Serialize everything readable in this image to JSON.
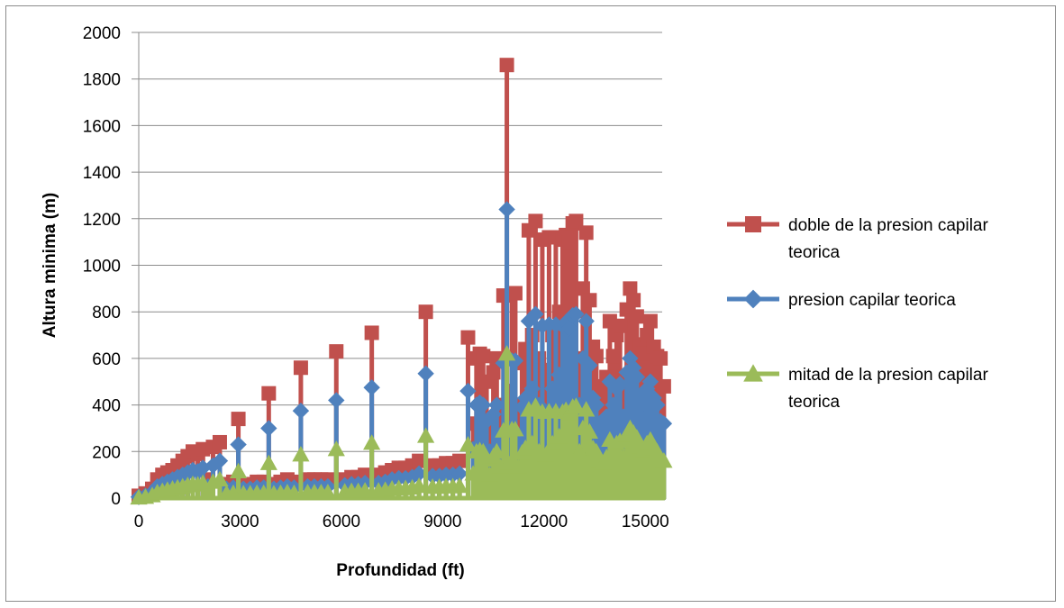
{
  "chart_data": {
    "type": "line",
    "title": "",
    "xlabel": "Profundidad (ft)",
    "ylabel": "Altura minima (m)",
    "xlim": [
      0,
      15500
    ],
    "ylim": [
      0,
      2000
    ],
    "xticks": [
      0,
      3000,
      6000,
      9000,
      12000,
      15000
    ],
    "yticks": [
      0,
      200,
      400,
      600,
      800,
      1000,
      1200,
      1400,
      1600,
      1800,
      2000
    ],
    "grid": "horizontal",
    "legend_position": "right",
    "series": [
      {
        "name": "doble de la presion capilar teorica",
        "color": "#c0504d",
        "marker": "square",
        "x": [
          0,
          200,
          400,
          550,
          700,
          850,
          1000,
          1150,
          1300,
          1450,
          1600,
          1750,
          1900,
          2050,
          2200,
          2400,
          2600,
          2800,
          2950,
          3100,
          3300,
          3500,
          3700,
          3850,
          4000,
          4200,
          4400,
          4600,
          4800,
          5000,
          5200,
          5400,
          5600,
          5850,
          6100,
          6300,
          6500,
          6700,
          6900,
          7100,
          7300,
          7500,
          7700,
          7900,
          8100,
          8300,
          8500,
          8700,
          8900,
          9100,
          9300,
          9500,
          9750,
          9900,
          10000,
          10100,
          10200,
          10300,
          10400,
          10500,
          10600,
          10700,
          10800,
          10900,
          10950,
          11050,
          11150,
          11250,
          11350,
          11450,
          11550,
          11650,
          11750,
          11850,
          11950,
          12050,
          12150,
          12250,
          12350,
          12450,
          12550,
          12650,
          12750,
          12850,
          12950,
          13050,
          13150,
          13250,
          13350,
          13450,
          13550,
          13650,
          13750,
          13850,
          13950,
          14050,
          14150,
          14250,
          14350,
          14450,
          14550,
          14650,
          14750,
          14850,
          14950,
          15050,
          15150,
          15250,
          15350,
          15450,
          15550
        ],
        "y": [
          10,
          20,
          40,
          80,
          100,
          110,
          120,
          140,
          160,
          180,
          200,
          190,
          210,
          80,
          220,
          240,
          60,
          70,
          340,
          60,
          60,
          70,
          70,
          450,
          60,
          70,
          80,
          70,
          560,
          80,
          80,
          80,
          80,
          630,
          80,
          90,
          90,
          100,
          710,
          100,
          110,
          120,
          130,
          130,
          140,
          160,
          800,
          140,
          140,
          150,
          150,
          160,
          690,
          320,
          600,
          620,
          610,
          500,
          310,
          540,
          600,
          400,
          870,
          1860,
          460,
          880,
          880,
          400,
          580,
          640,
          1150,
          700,
          1190,
          600,
          1110,
          550,
          1120,
          700,
          1120,
          800,
          1110,
          1130,
          1100,
          1180,
          1190,
          600,
          900,
          1140,
          850,
          650,
          610,
          480,
          460,
          520,
          760,
          610,
          700,
          740,
          520,
          810,
          900,
          850,
          780,
          660,
          620,
          700,
          760,
          650,
          610,
          600,
          480
        ]
      },
      {
        "name": "presion capilar teorica",
        "color": "#4f81bd",
        "marker": "diamond",
        "x": [
          0,
          200,
          400,
          550,
          700,
          850,
          1000,
          1150,
          1300,
          1450,
          1600,
          1750,
          1900,
          2050,
          2200,
          2400,
          2600,
          2800,
          2950,
          3100,
          3300,
          3500,
          3700,
          3850,
          4000,
          4200,
          4400,
          4600,
          4800,
          5000,
          5200,
          5400,
          5600,
          5850,
          6100,
          6300,
          6500,
          6700,
          6900,
          7100,
          7300,
          7500,
          7700,
          7900,
          8100,
          8300,
          8500,
          8700,
          8900,
          9100,
          9300,
          9500,
          9750,
          9900,
          10000,
          10100,
          10200,
          10300,
          10400,
          10500,
          10600,
          10700,
          10800,
          10900,
          10950,
          11050,
          11150,
          11250,
          11350,
          11450,
          11550,
          11650,
          11750,
          11850,
          11950,
          12050,
          12150,
          12250,
          12350,
          12450,
          12550,
          12650,
          12750,
          12850,
          12950,
          13050,
          13150,
          13250,
          13350,
          13450,
          13550,
          13650,
          13750,
          13850,
          13950,
          14050,
          14150,
          14250,
          14350,
          14450,
          14550,
          14650,
          14750,
          14850,
          14950,
          15050,
          15150,
          15250,
          15350,
          15450,
          15550
        ],
        "y": [
          5,
          10,
          25,
          50,
          60,
          70,
          80,
          90,
          100,
          110,
          120,
          115,
          130,
          50,
          140,
          160,
          40,
          45,
          230,
          40,
          40,
          45,
          45,
          300,
          40,
          45,
          50,
          45,
          375,
          50,
          50,
          50,
          50,
          420,
          55,
          60,
          60,
          65,
          475,
          65,
          70,
          80,
          85,
          85,
          90,
          105,
          535,
          95,
          95,
          100,
          100,
          105,
          460,
          210,
          400,
          410,
          400,
          330,
          200,
          360,
          400,
          270,
          580,
          1240,
          300,
          590,
          590,
          270,
          390,
          430,
          760,
          470,
          790,
          400,
          740,
          370,
          745,
          470,
          745,
          530,
          740,
          755,
          730,
          785,
          790,
          400,
          600,
          760,
          570,
          430,
          400,
          320,
          300,
          350,
          500,
          400,
          470,
          490,
          350,
          540,
          600,
          560,
          520,
          440,
          410,
          470,
          500,
          430,
          400,
          330,
          320
        ]
      },
      {
        "name": "mitad de la presion capilar teorica",
        "color": "#9bbb59",
        "marker": "triangle",
        "x": [
          0,
          200,
          400,
          550,
          700,
          850,
          1000,
          1150,
          1300,
          1450,
          1600,
          1750,
          1900,
          2050,
          2200,
          2400,
          2600,
          2800,
          2950,
          3100,
          3300,
          3500,
          3700,
          3850,
          4000,
          4200,
          4400,
          4600,
          4800,
          5000,
          5200,
          5400,
          5600,
          5850,
          6100,
          6300,
          6500,
          6700,
          6900,
          7100,
          7300,
          7500,
          7700,
          7900,
          8100,
          8300,
          8500,
          8700,
          8900,
          9100,
          9300,
          9500,
          9750,
          9900,
          10000,
          10100,
          10200,
          10300,
          10400,
          10500,
          10600,
          10700,
          10800,
          10900,
          10950,
          11050,
          11150,
          11250,
          11350,
          11450,
          11550,
          11650,
          11750,
          11850,
          11950,
          12050,
          12150,
          12250,
          12350,
          12450,
          12550,
          12650,
          12750,
          12850,
          12950,
          13050,
          13150,
          13250,
          13350,
          13450,
          13550,
          13650,
          13750,
          13850,
          13950,
          14050,
          14150,
          14250,
          14350,
          14450,
          14550,
          14650,
          14750,
          14850,
          14950,
          15050,
          15150,
          15250,
          15350,
          15450,
          15550
        ],
        "y": [
          2,
          5,
          12,
          25,
          30,
          35,
          40,
          45,
          50,
          55,
          60,
          58,
          65,
          25,
          70,
          80,
          20,
          22,
          115,
          20,
          20,
          22,
          22,
          150,
          20,
          22,
          25,
          22,
          187,
          25,
          25,
          25,
          25,
          210,
          28,
          30,
          30,
          32,
          237,
          32,
          35,
          40,
          42,
          42,
          45,
          52,
          267,
          48,
          48,
          50,
          50,
          52,
          230,
          105,
          200,
          205,
          200,
          165,
          100,
          180,
          200,
          135,
          290,
          620,
          150,
          295,
          295,
          135,
          195,
          215,
          380,
          235,
          395,
          200,
          370,
          185,
          372,
          235,
          372,
          265,
          370,
          378,
          365,
          392,
          395,
          200,
          300,
          380,
          285,
          215,
          200,
          160,
          150,
          175,
          250,
          200,
          235,
          245,
          175,
          270,
          300,
          280,
          260,
          220,
          205,
          235,
          250,
          215,
          200,
          165,
          160
        ]
      }
    ]
  }
}
